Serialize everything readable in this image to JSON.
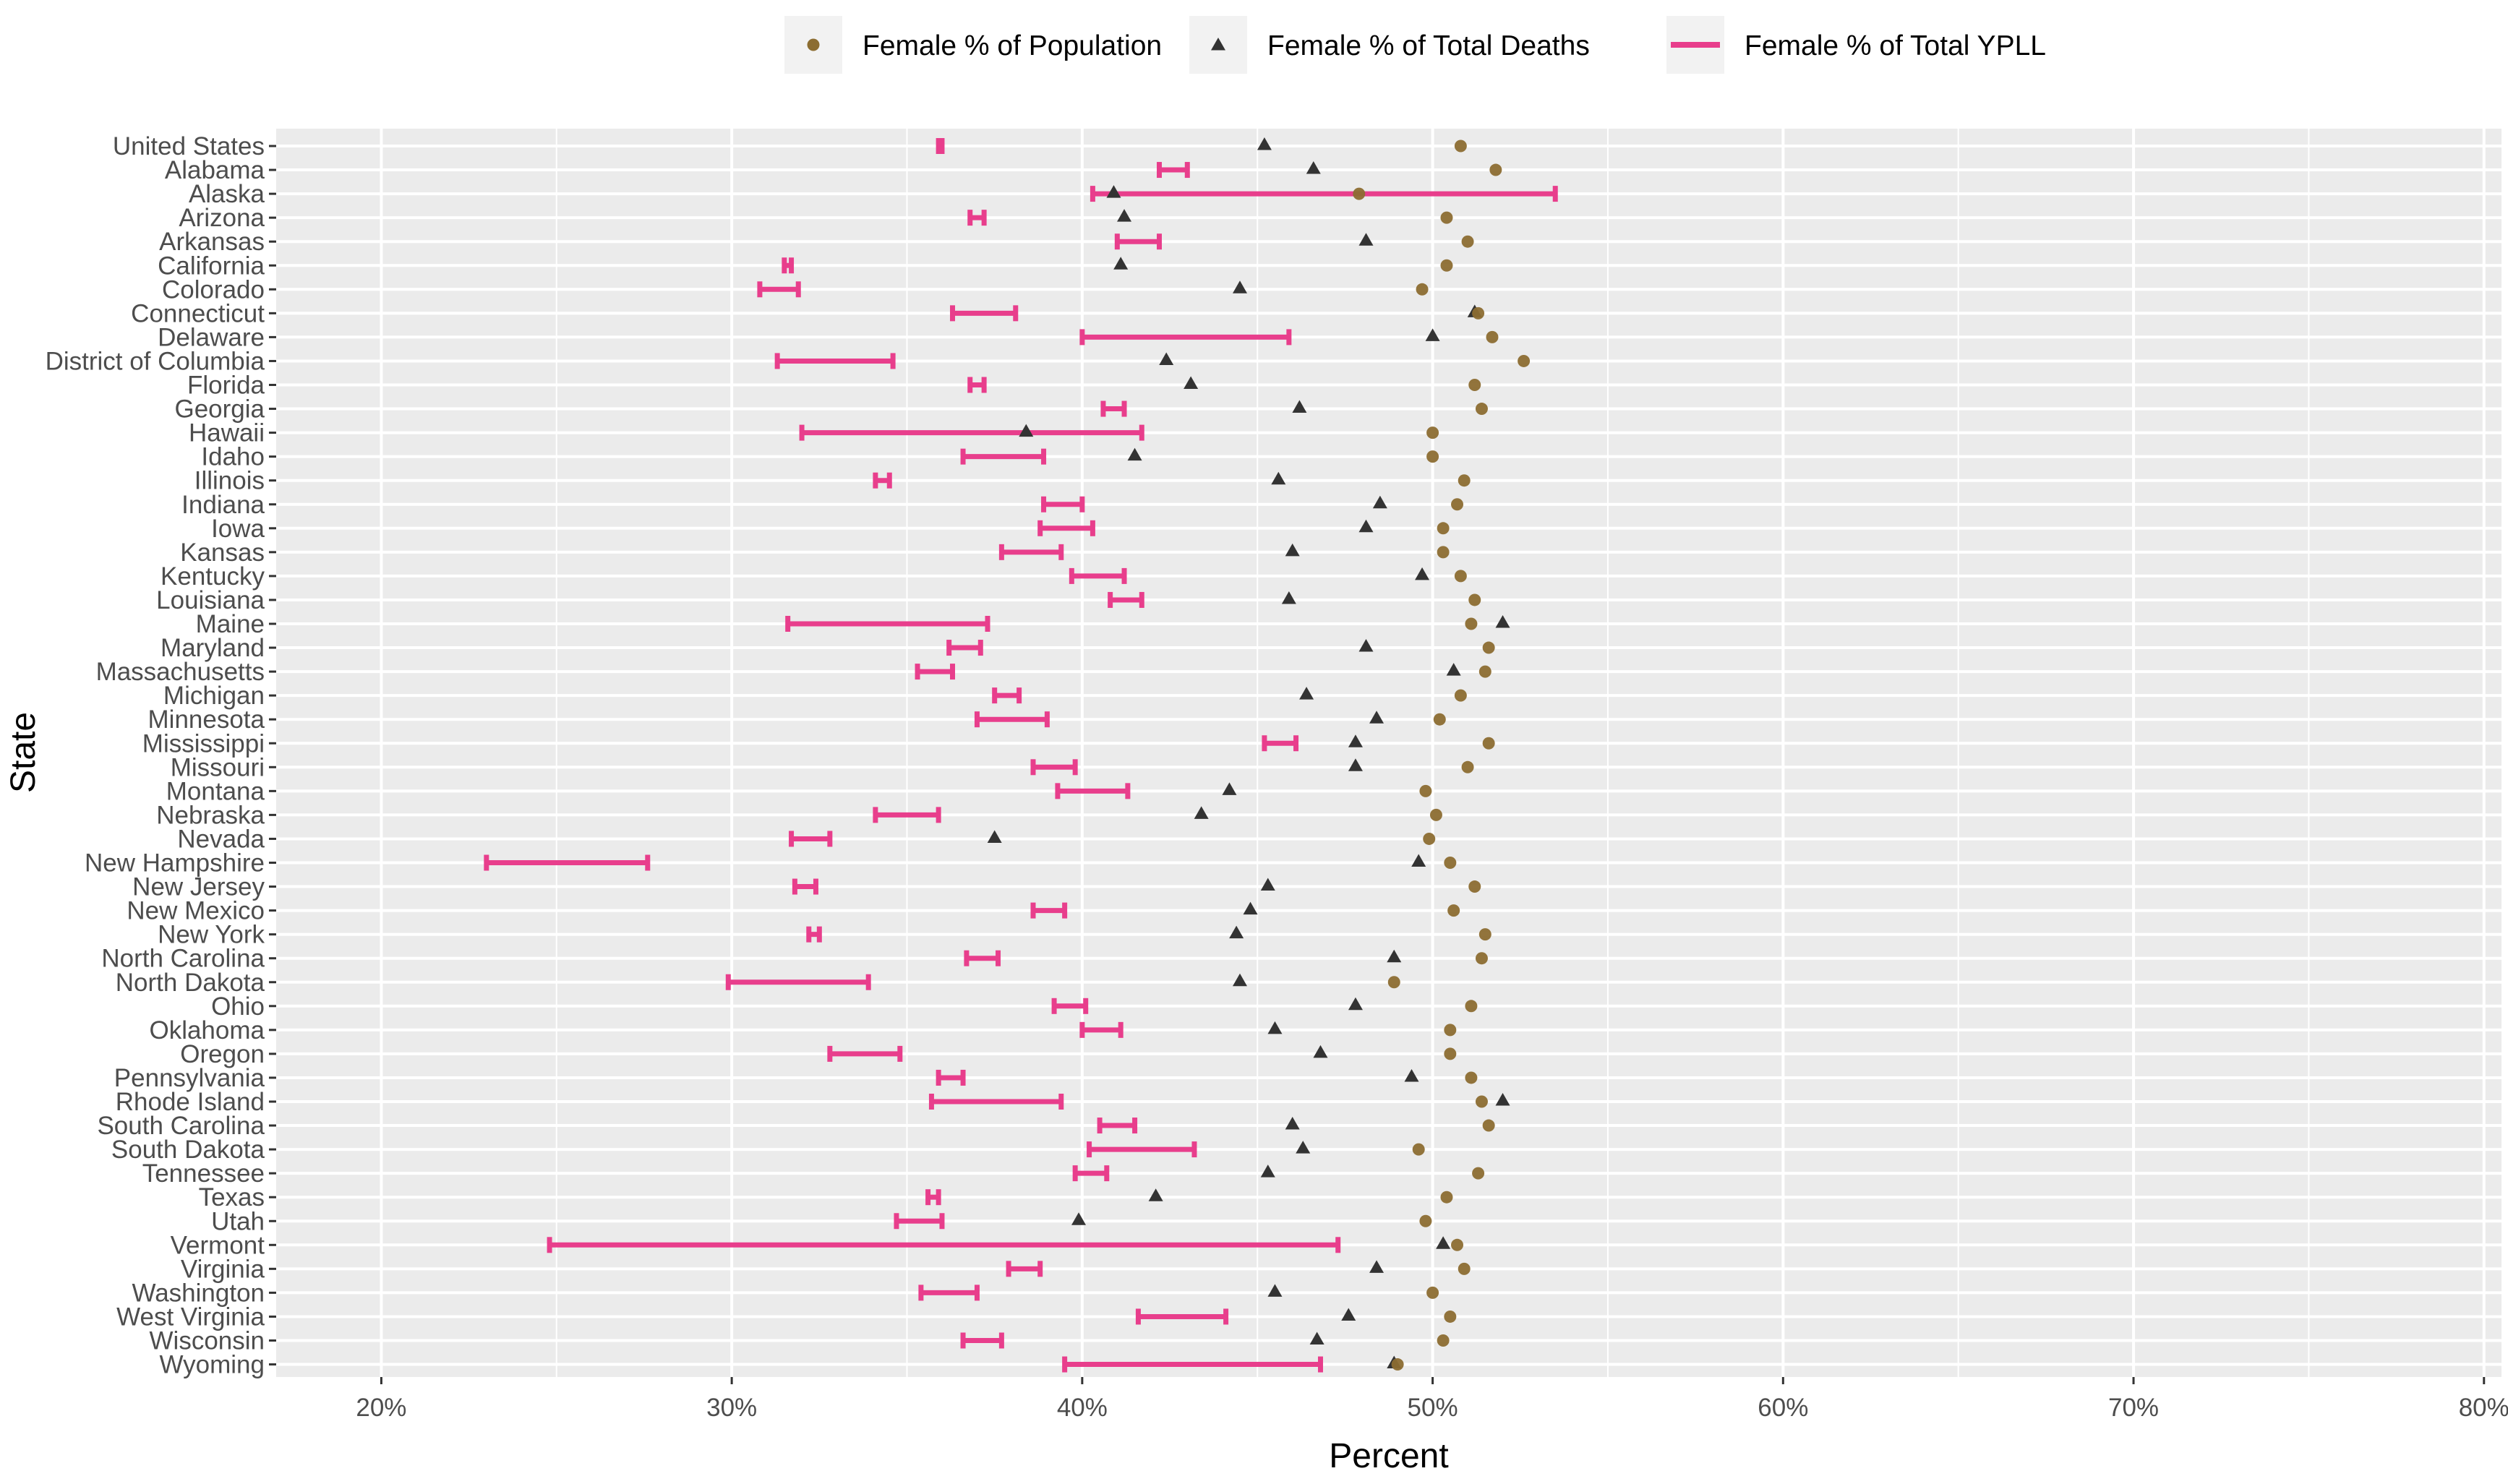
{
  "chart_data": {
    "type": "scatter",
    "title": "",
    "xlabel": "Percent",
    "ylabel": "State",
    "xlim": [
      17,
      80.5
    ],
    "x_ticks": [
      20,
      30,
      40,
      50,
      60,
      70,
      80
    ],
    "x_tick_labels": [
      "20%",
      "30%",
      "40%",
      "50%",
      "60%",
      "70%",
      "80%"
    ],
    "grid": true,
    "legend_position": "top",
    "legend": [
      {
        "key": "pop",
        "label": "Female % of Population",
        "marker": "circle",
        "color": "#8c6d31"
      },
      {
        "key": "deaths",
        "label": "Female % of Total Deaths",
        "marker": "triangle",
        "color": "#333333"
      },
      {
        "key": "ypll",
        "label": "Female % of Total YPLL",
        "marker": "errorbar",
        "color": "#e83e8c"
      }
    ],
    "states": [
      "United States",
      "Alabama",
      "Alaska",
      "Arizona",
      "Arkansas",
      "California",
      "Colorado",
      "Connecticut",
      "Delaware",
      "District of Columbia",
      "Florida",
      "Georgia",
      "Hawaii",
      "Idaho",
      "Illinois",
      "Indiana",
      "Iowa",
      "Kansas",
      "Kentucky",
      "Louisiana",
      "Maine",
      "Maryland",
      "Massachusetts",
      "Michigan",
      "Minnesota",
      "Mississippi",
      "Missouri",
      "Montana",
      "Nebraska",
      "Nevada",
      "New Hampshire",
      "New Jersey",
      "New Mexico",
      "New York",
      "North Carolina",
      "North Dakota",
      "Ohio",
      "Oklahoma",
      "Oregon",
      "Pennsylvania",
      "Rhode Island",
      "South Carolina",
      "South Dakota",
      "Tennessee",
      "Texas",
      "Utah",
      "Vermont",
      "Virginia",
      "Washington",
      "West Virginia",
      "Wisconsin",
      "Wyoming"
    ],
    "female_pct_population": [
      50.8,
      51.8,
      47.9,
      50.4,
      51.0,
      50.4,
      49.7,
      51.3,
      51.7,
      52.6,
      51.2,
      51.4,
      50.0,
      50.0,
      50.9,
      50.7,
      50.3,
      50.3,
      50.8,
      51.2,
      51.1,
      51.6,
      51.5,
      50.8,
      50.2,
      51.6,
      51.0,
      49.8,
      50.1,
      49.9,
      50.5,
      51.2,
      50.6,
      51.5,
      51.4,
      48.9,
      51.1,
      50.5,
      50.5,
      51.1,
      51.4,
      51.6,
      49.6,
      51.3,
      50.4,
      49.8,
      50.7,
      50.9,
      50.0,
      50.5,
      50.3,
      49.0
    ],
    "female_pct_deaths": [
      45.2,
      46.6,
      40.9,
      41.2,
      48.1,
      41.1,
      44.5,
      51.2,
      50.0,
      42.4,
      43.1,
      46.2,
      38.4,
      41.5,
      45.6,
      48.5,
      48.1,
      46.0,
      49.7,
      45.9,
      52.0,
      48.1,
      50.6,
      46.4,
      48.4,
      47.8,
      47.8,
      44.2,
      43.4,
      37.5,
      49.6,
      45.3,
      44.8,
      44.4,
      48.9,
      44.5,
      47.8,
      45.5,
      46.8,
      49.4,
      52.0,
      46.0,
      46.3,
      45.3,
      42.1,
      39.9,
      50.3,
      48.4,
      45.5,
      47.6,
      46.7,
      48.9
    ],
    "female_pct_ypll": [
      [
        35.9,
        36.0
      ],
      [
        42.2,
        43.0
      ],
      [
        40.3,
        53.5
      ],
      [
        36.8,
        37.2
      ],
      [
        41.0,
        42.2
      ],
      [
        31.5,
        31.7
      ],
      [
        30.8,
        31.9
      ],
      [
        36.3,
        38.1
      ],
      [
        40.0,
        45.9
      ],
      [
        31.3,
        34.6
      ],
      [
        36.8,
        37.2
      ],
      [
        40.6,
        41.2
      ],
      [
        32.0,
        41.7
      ],
      [
        36.6,
        38.9
      ],
      [
        34.1,
        34.5
      ],
      [
        38.9,
        40.0
      ],
      [
        38.8,
        40.3
      ],
      [
        37.7,
        39.4
      ],
      [
        39.7,
        41.2
      ],
      [
        40.8,
        41.7
      ],
      [
        31.6,
        37.3
      ],
      [
        36.2,
        37.1
      ],
      [
        35.3,
        36.3
      ],
      [
        37.5,
        38.2
      ],
      [
        37.0,
        39.0
      ],
      [
        45.2,
        46.1
      ],
      [
        38.6,
        39.8
      ],
      [
        39.3,
        41.3
      ],
      [
        34.1,
        35.9
      ],
      [
        31.7,
        32.8
      ],
      [
        23.0,
        27.6
      ],
      [
        31.8,
        32.4
      ],
      [
        38.6,
        39.5
      ],
      [
        32.2,
        32.5
      ],
      [
        36.7,
        37.6
      ],
      [
        29.9,
        33.9
      ],
      [
        39.2,
        40.1
      ],
      [
        40.0,
        41.1
      ],
      [
        32.8,
        34.8
      ],
      [
        35.9,
        36.6
      ],
      [
        35.7,
        39.4
      ],
      [
        40.5,
        41.5
      ],
      [
        40.2,
        43.2
      ],
      [
        39.8,
        40.7
      ],
      [
        35.6,
        35.9
      ],
      [
        34.7,
        36.0
      ],
      [
        24.8,
        47.3
      ],
      [
        37.9,
        38.8
      ],
      [
        35.4,
        37.0
      ],
      [
        41.6,
        44.1
      ],
      [
        36.6,
        37.7
      ],
      [
        39.5,
        46.8
      ]
    ]
  }
}
